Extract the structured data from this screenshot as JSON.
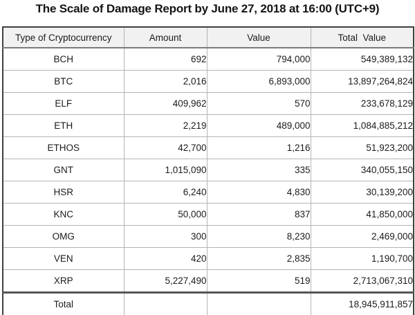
{
  "title": "The Scale of Damage Report by June 27, 2018 at 16:00 (UTC+9)",
  "colors": {
    "header_bg": "#f1f1f1",
    "outer_border": "#3f3f3f",
    "grid_line": "#b4b4b4",
    "header_divider": "#7a7a7a",
    "text": "#1b1b1b"
  },
  "table": {
    "columns": {
      "type": "Type of Cryptocurrency",
      "amount": "Amount",
      "value": "Value",
      "total_value": "Total  Value"
    },
    "rows": [
      {
        "type": "BCH",
        "amount": "692",
        "value": "794,000",
        "total_value": "549,389,132"
      },
      {
        "type": "BTC",
        "amount": "2,016",
        "value": "6,893,000",
        "total_value": "13,897,264,824"
      },
      {
        "type": "ELF",
        "amount": "409,962",
        "value": "570",
        "total_value": "233,678,129"
      },
      {
        "type": "ETH",
        "amount": "2,219",
        "value": "489,000",
        "total_value": "1,084,885,212"
      },
      {
        "type": "ETHOS",
        "amount": "42,700",
        "value": "1,216",
        "total_value": "51,923,200"
      },
      {
        "type": "GNT",
        "amount": "1,015,090",
        "value": "335",
        "total_value": "340,055,150"
      },
      {
        "type": "HSR",
        "amount": "6,240",
        "value": "4,830",
        "total_value": "30,139,200"
      },
      {
        "type": "KNC",
        "amount": "50,000",
        "value": "837",
        "total_value": "41,850,000"
      },
      {
        "type": "OMG",
        "amount": "300",
        "value": "8,230",
        "total_value": "2,469,000"
      },
      {
        "type": "VEN",
        "amount": "420",
        "value": "2,835",
        "total_value": "1,190,700"
      },
      {
        "type": "XRP",
        "amount": "5,227,490",
        "value": "519",
        "total_value": "2,713,067,310"
      }
    ],
    "footer": {
      "label": "Total",
      "amount": "",
      "value": "",
      "total_value": "18,945,911,857"
    }
  },
  "chart_data": {
    "type": "table",
    "title": "The Scale of Damage Report by June 27, 2018 at 16:00 (UTC+9)",
    "columns": [
      "Type of Cryptocurrency",
      "Amount",
      "Value",
      "Total Value"
    ],
    "rows": [
      [
        "BCH",
        692,
        794000,
        549389132
      ],
      [
        "BTC",
        2016,
        6893000,
        13897264824
      ],
      [
        "ELF",
        409962,
        570,
        233678129
      ],
      [
        "ETH",
        2219,
        489000,
        1084885212
      ],
      [
        "ETHOS",
        42700,
        1216,
        51923200
      ],
      [
        "GNT",
        1015090,
        335,
        340055150
      ],
      [
        "HSR",
        6240,
        4830,
        30139200
      ],
      [
        "KNC",
        50000,
        837,
        41850000
      ],
      [
        "OMG",
        300,
        8230,
        2469000
      ],
      [
        "VEN",
        420,
        2835,
        1190700
      ],
      [
        "XRP",
        5227490,
        519,
        2713067310
      ]
    ],
    "total_row": [
      "Total",
      null,
      null,
      18945911857
    ]
  }
}
